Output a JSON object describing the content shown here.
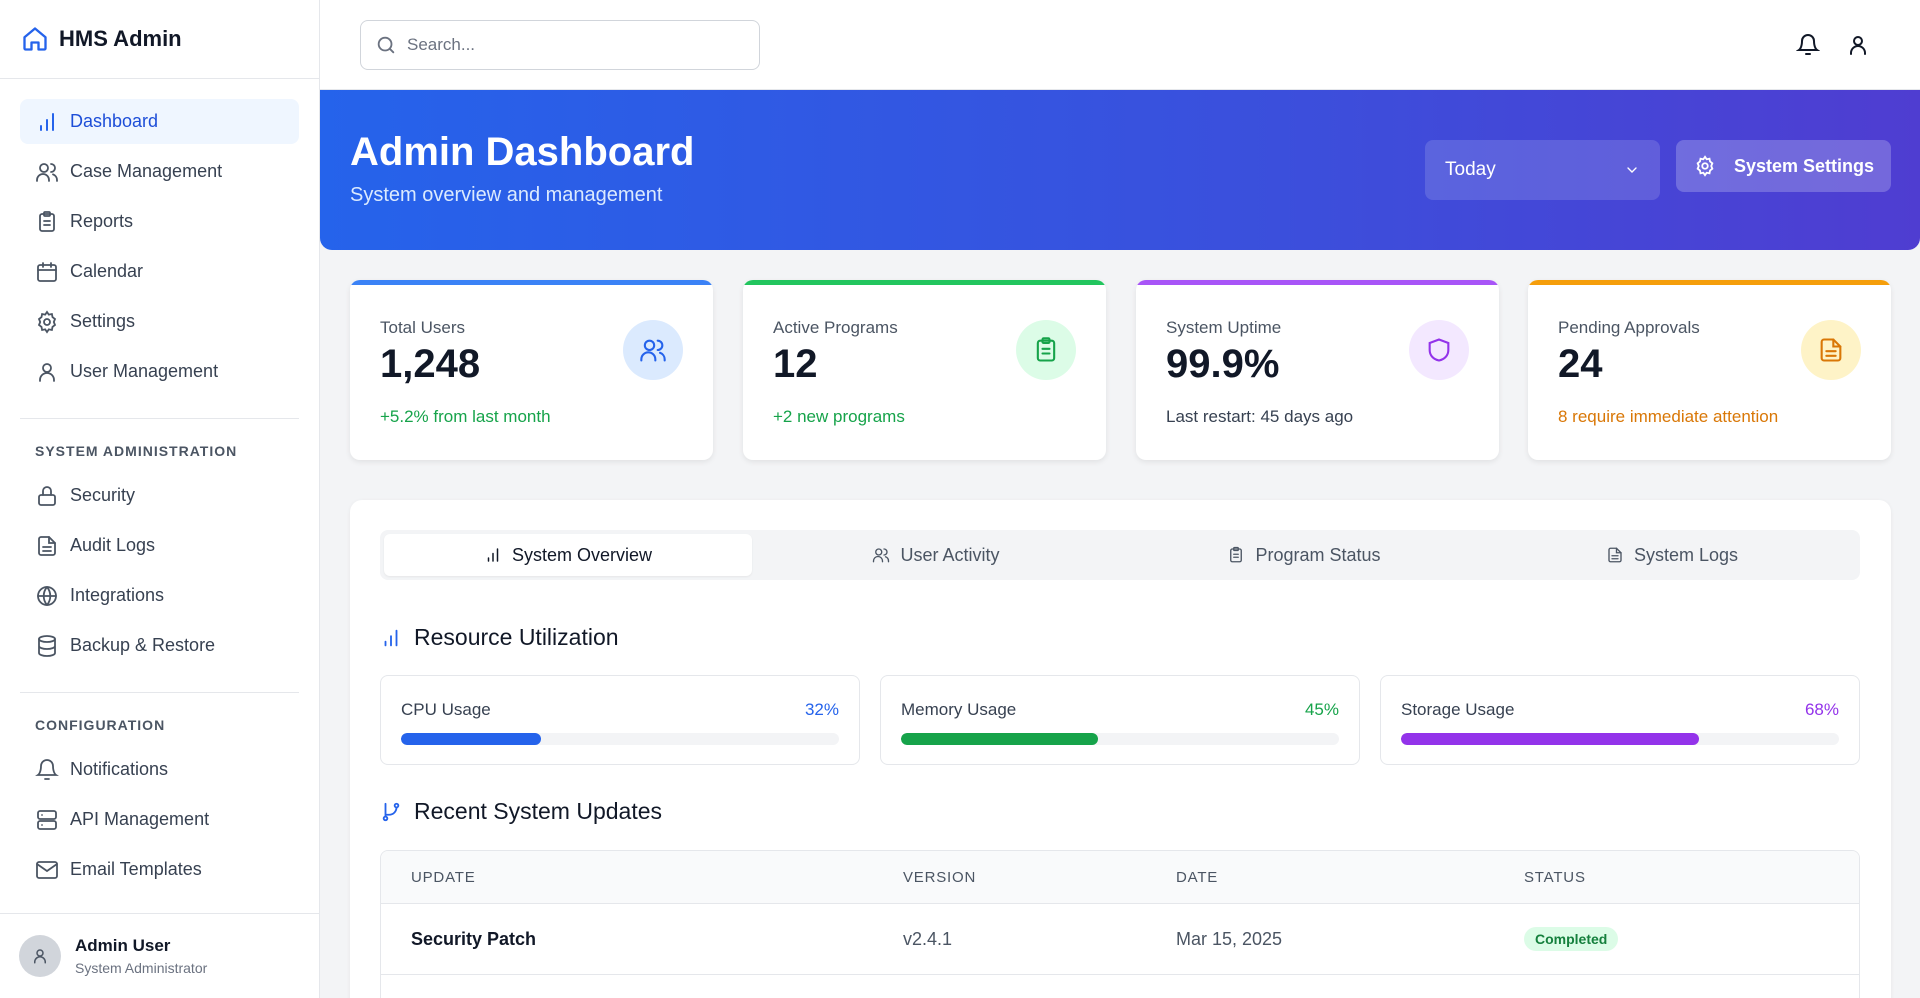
{
  "app": {
    "name": "HMS Admin"
  },
  "sidebar": {
    "main_items": [
      {
        "label": "Dashboard",
        "icon": "bar-chart-icon",
        "active": true
      },
      {
        "label": "Case Management",
        "icon": "users-icon"
      },
      {
        "label": "Reports",
        "icon": "clipboard-icon"
      },
      {
        "label": "Calendar",
        "icon": "calendar-icon"
      },
      {
        "label": "Settings",
        "icon": "gear-icon"
      },
      {
        "label": "User Management",
        "icon": "user-icon"
      }
    ],
    "system_admin_label": "SYSTEM ADMINISTRATION",
    "system_admin_items": [
      {
        "label": "Security",
        "icon": "lock-icon"
      },
      {
        "label": "Audit Logs",
        "icon": "document-icon"
      },
      {
        "label": "Integrations",
        "icon": "globe-icon"
      },
      {
        "label": "Backup & Restore",
        "icon": "database-icon"
      }
    ],
    "configuration_label": "CONFIGURATION",
    "configuration_items": [
      {
        "label": "Notifications",
        "icon": "bell-icon"
      },
      {
        "label": "API Management",
        "icon": "server-icon"
      },
      {
        "label": "Email Templates",
        "icon": "mail-icon"
      }
    ],
    "user": {
      "name": "Admin User",
      "role": "System Administrator"
    }
  },
  "topbar": {
    "search_placeholder": "Search..."
  },
  "hero": {
    "title": "Admin Dashboard",
    "subtitle": "System overview and management",
    "period": "Today",
    "settings_button": "System Settings"
  },
  "stats": [
    {
      "label": "Total Users",
      "value": "1,248",
      "note": "+5.2% from last month",
      "accent": "#3b82f6",
      "note_color": "#16a34a",
      "icon": "users-icon",
      "badge_bg": "#dbeafe",
      "badge_color": "#2563eb"
    },
    {
      "label": "Active Programs",
      "value": "12",
      "note": "+2 new programs",
      "accent": "#22c55e",
      "note_color": "#16a34a",
      "icon": "clipboard-icon",
      "badge_bg": "#dcfce7",
      "badge_color": "#16a34a"
    },
    {
      "label": "System Uptime",
      "value": "99.9%",
      "note": "Last restart: 45 days ago",
      "accent": "#a855f7",
      "note_color": "#374151",
      "icon": "shield-icon",
      "badge_bg": "#f3e8ff",
      "badge_color": "#9333ea"
    },
    {
      "label": "Pending Approvals",
      "value": "24",
      "note": "8 require immediate attention",
      "accent": "#f59e0b",
      "note_color": "#d97706",
      "icon": "document-icon",
      "badge_bg": "#fef3c7",
      "badge_color": "#d97706"
    }
  ],
  "tabs": [
    {
      "label": "System Overview",
      "icon": "bar-chart-icon",
      "active": true
    },
    {
      "label": "User Activity",
      "icon": "users-icon"
    },
    {
      "label": "Program Status",
      "icon": "clipboard-icon"
    },
    {
      "label": "System Logs",
      "icon": "document-icon"
    }
  ],
  "resource": {
    "title": "Resource Utilization",
    "items": [
      {
        "label": "CPU Usage",
        "percent": "32%",
        "fraction": 0.32,
        "color": "#2563eb"
      },
      {
        "label": "Memory Usage",
        "percent": "45%",
        "fraction": 0.45,
        "color": "#16a34a"
      },
      {
        "label": "Storage Usage",
        "percent": "68%",
        "fraction": 0.68,
        "color": "#9333ea"
      }
    ]
  },
  "updates": {
    "title": "Recent System Updates",
    "columns": [
      "UPDATE",
      "VERSION",
      "DATE",
      "STATUS"
    ],
    "rows": [
      {
        "update": "Security Patch",
        "version": "v2.4.1",
        "date": "Mar 15, 2025",
        "status": "Completed"
      }
    ]
  }
}
